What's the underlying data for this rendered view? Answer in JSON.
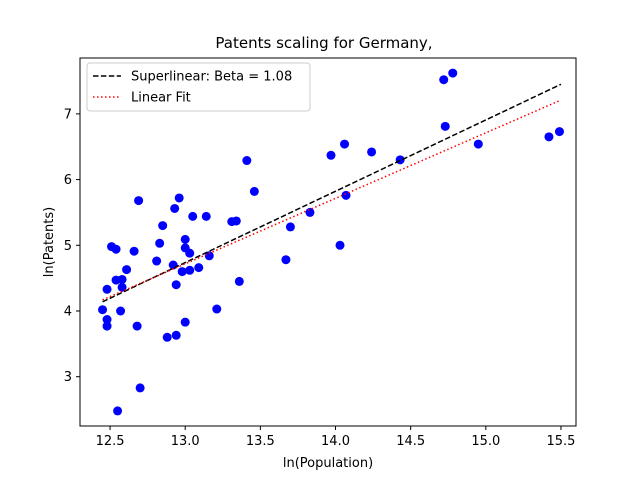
{
  "chart_data": {
    "type": "scatter",
    "title": "Patents scaling for Germany,",
    "xlabel": "ln(Population)",
    "ylabel": "ln(Patents)",
    "xlim": [
      12.3,
      15.6
    ],
    "ylim": [
      2.25,
      7.85
    ],
    "xticks": [
      12.5,
      13.0,
      13.5,
      14.0,
      14.5,
      15.0,
      15.5
    ],
    "xtick_labels": [
      "12.5",
      "13.0",
      "13.5",
      "14.0",
      "14.5",
      "15.0",
      "15.5"
    ],
    "yticks": [
      3,
      4,
      5,
      6,
      7
    ],
    "ytick_labels": [
      "3",
      "4",
      "5",
      "6",
      "7"
    ],
    "grid": false,
    "legend_position": "top-left",
    "colors": {
      "points": "#0000ff",
      "superlinear": "#000000",
      "linear": "#ff0000"
    },
    "series": [
      {
        "name": "Superlinear: Beta = 1.08",
        "kind": "line",
        "style": "dashed",
        "x": [
          12.45,
          15.5
        ],
        "y": [
          4.14,
          7.45
        ]
      },
      {
        "name": "Linear Fit",
        "kind": "line",
        "style": "dotted",
        "x": [
          12.45,
          15.5
        ],
        "y": [
          4.17,
          7.21
        ]
      },
      {
        "kind": "scatter",
        "points": [
          [
            12.45,
            4.02
          ],
          [
            12.48,
            4.33
          ],
          [
            12.48,
            3.87
          ],
          [
            12.48,
            3.77
          ],
          [
            12.51,
            4.98
          ],
          [
            12.54,
            4.94
          ],
          [
            12.54,
            4.47
          ],
          [
            12.55,
            2.48
          ],
          [
            12.57,
            4.0
          ],
          [
            12.58,
            4.48
          ],
          [
            12.58,
            4.36
          ],
          [
            12.61,
            4.63
          ],
          [
            12.66,
            4.91
          ],
          [
            12.68,
            3.77
          ],
          [
            12.69,
            5.68
          ],
          [
            12.7,
            2.83
          ],
          [
            12.81,
            4.76
          ],
          [
            12.83,
            5.03
          ],
          [
            12.85,
            5.3
          ],
          [
            12.88,
            3.6
          ],
          [
            12.92,
            4.7
          ],
          [
            12.93,
            5.56
          ],
          [
            12.94,
            4.4
          ],
          [
            12.94,
            3.63
          ],
          [
            12.96,
            5.72
          ],
          [
            12.98,
            4.6
          ],
          [
            13.0,
            4.96
          ],
          [
            13.0,
            5.09
          ],
          [
            13.0,
            3.83
          ],
          [
            13.03,
            4.88
          ],
          [
            13.03,
            4.62
          ],
          [
            13.05,
            5.44
          ],
          [
            13.09,
            4.66
          ],
          [
            13.14,
            5.44
          ],
          [
            13.16,
            4.84
          ],
          [
            13.21,
            4.03
          ],
          [
            13.31,
            5.36
          ],
          [
            13.34,
            5.37
          ],
          [
            13.36,
            4.45
          ],
          [
            13.41,
            6.29
          ],
          [
            13.46,
            5.82
          ],
          [
            13.67,
            4.78
          ],
          [
            13.7,
            5.28
          ],
          [
            13.83,
            5.5
          ],
          [
            13.97,
            6.37
          ],
          [
            14.03,
            5.0
          ],
          [
            14.06,
            6.54
          ],
          [
            14.07,
            5.76
          ],
          [
            14.24,
            6.42
          ],
          [
            14.43,
            6.3
          ],
          [
            14.72,
            7.52
          ],
          [
            14.73,
            6.81
          ],
          [
            14.78,
            7.62
          ],
          [
            14.95,
            6.54
          ],
          [
            15.42,
            6.65
          ],
          [
            15.49,
            6.73
          ]
        ]
      }
    ]
  }
}
